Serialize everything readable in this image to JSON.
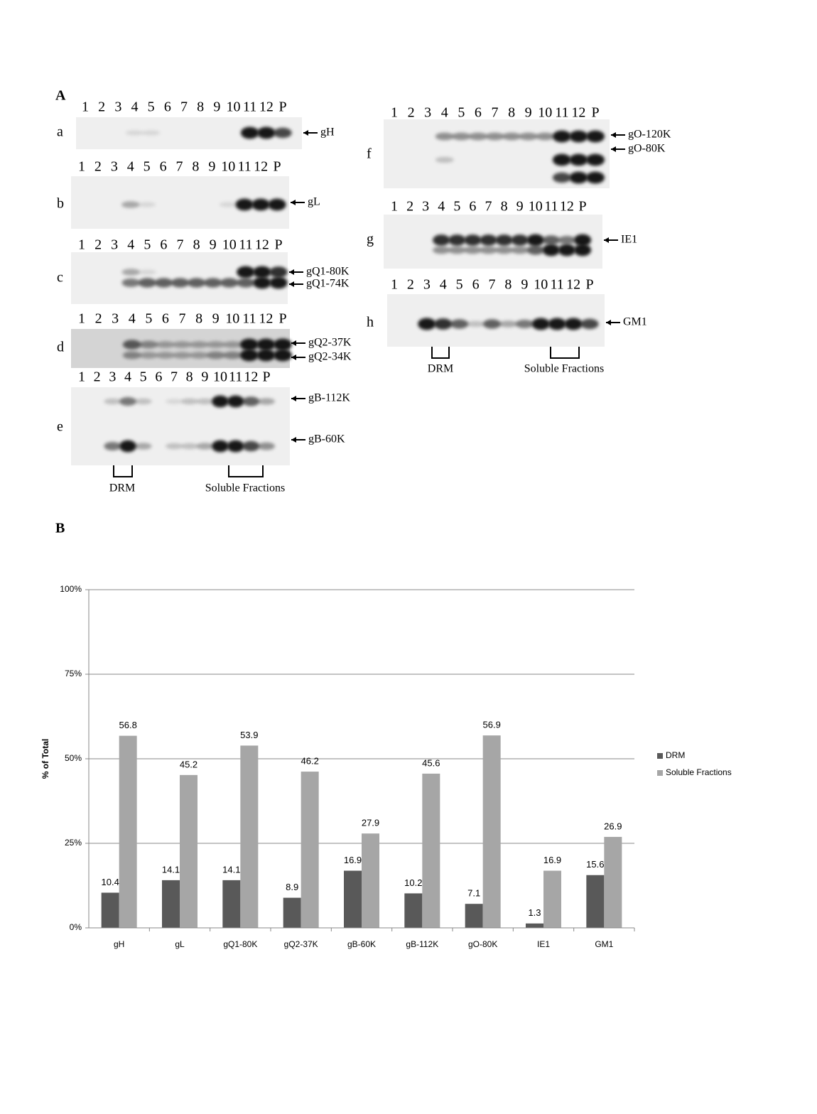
{
  "panel_a": {
    "label": "A",
    "groups": [
      {
        "blots": [
          {
            "letter": "a",
            "lanes": [
              "1",
              "2",
              "3",
              "4",
              "5",
              "6",
              "7",
              "8",
              "9",
              "10",
              "11",
              "12",
              "P"
            ],
            "markers": [
              "gH"
            ]
          },
          {
            "letter": "b",
            "lanes": [
              "1",
              "2",
              "3",
              "4",
              "5",
              "6",
              "7",
              "8",
              "9",
              "10",
              "11",
              "12",
              "P"
            ],
            "markers": [
              "gL"
            ]
          },
          {
            "letter": "c",
            "lanes": [
              "1",
              "2",
              "3",
              "4",
              "5",
              "6",
              "7",
              "8",
              "9",
              "10",
              "11",
              "12",
              "P"
            ],
            "markers": [
              "gQ1-80K",
              "gQ1-74K"
            ]
          },
          {
            "letter": "d",
            "lanes": [
              "1",
              "2",
              "3",
              "4",
              "5",
              "6",
              "7",
              "8",
              "9",
              "10",
              "11",
              "12",
              "P"
            ],
            "markers": [
              "gQ2-37K",
              "gQ2-34K"
            ]
          },
          {
            "letter": "e",
            "lanes": [
              "1",
              "2",
              "3",
              "4",
              "5",
              "6",
              "7",
              "8",
              "9",
              "10",
              "11",
              "12",
              "P"
            ],
            "markers": [
              "gB-112K",
              "gB-60K"
            ]
          }
        ],
        "brackets": [
          "DRM",
          "Soluble Fractions"
        ]
      },
      {
        "blots": [
          {
            "letter": "f",
            "lanes": [
              "1",
              "2",
              "3",
              "4",
              "5",
              "6",
              "7",
              "8",
              "9",
              "10",
              "11",
              "12",
              "P"
            ],
            "markers": [
              "gO-120K",
              "gO-80K"
            ]
          },
          {
            "letter": "g",
            "lanes": [
              "1",
              "2",
              "3",
              "4",
              "5",
              "6",
              "7",
              "8",
              "9",
              "10",
              "11",
              "12",
              "P"
            ],
            "markers": [
              "IE1"
            ]
          },
          {
            "letter": "h",
            "lanes": [
              "1",
              "2",
              "3",
              "4",
              "5",
              "6",
              "7",
              "8",
              "9",
              "10",
              "11",
              "12",
              "P"
            ],
            "markers": [
              "GM1"
            ]
          }
        ],
        "brackets": [
          "DRM",
          "Soluble Fractions"
        ]
      }
    ]
  },
  "panel_b_label": "B",
  "chart_data": {
    "type": "bar",
    "y_label": "% of Total",
    "categories": [
      "gH",
      "gL",
      "gQ1-80K",
      "gQ2-37K",
      "gB-60K",
      "gB-112K",
      "gO-80K",
      "IE1",
      "GM1"
    ],
    "series": [
      {
        "name": "DRM",
        "color": "#595959",
        "values": [
          10.4,
          14.1,
          14.1,
          8.9,
          16.9,
          10.2,
          7.1,
          1.3,
          15.6
        ]
      },
      {
        "name": "Soluble Fractions",
        "color": "#a6a6a6",
        "values": [
          56.8,
          45.2,
          53.9,
          46.2,
          27.9,
          45.6,
          56.9,
          16.9,
          26.9
        ]
      }
    ],
    "ylim": [
      0,
      100
    ],
    "yticks": [
      {
        "value": 0,
        "label": "0%"
      },
      {
        "value": 25,
        "label": "25%"
      },
      {
        "value": 50,
        "label": "50%"
      },
      {
        "value": 75,
        "label": "75%"
      },
      {
        "value": 100,
        "label": "100%"
      }
    ],
    "grid": true,
    "legend": "right"
  }
}
